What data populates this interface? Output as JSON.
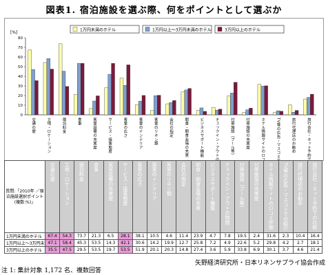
{
  "title": "図表1. 宿泊施設を選ぶ際、何をポイントとして選ぶか",
  "chart_data": {
    "type": "bar",
    "unit_label": "[%]",
    "ylim": [
      0,
      80
    ],
    "yticks": [
      0,
      10,
      20,
      30,
      40,
      50,
      60,
      70,
      80
    ],
    "legend_position": "top",
    "categories": [
      "交通の便",
      "立地・ロケーション",
      "宿泊料金",
      "食事",
      "客室設備の充実度",
      "サービス・接客態度",
      "客室の広さ",
      "客室のインテリア",
      "客室のリネン類",
      "会社の指定",
      "朝食・朝食会場の充実",
      "ビジネスサポート機能",
      "チェックイン・アウトの時間",
      "付帯施設（プール等）",
      "付帯施設の充実度",
      "ホテル情報サイトのロコミ評価",
      "TV等の広告・マスコミでの紹介",
      "旅行代理店のお勧め",
      "旅行会社・ネット予約での比較"
    ],
    "series": [
      {
        "name": "1万円未満のホテル",
        "color": "#ffffaa",
        "values": [
          67.4,
          54.3,
          73.7,
          21.3,
          6.5,
          28.1,
          38.1,
          10.5,
          4.6,
          11.4,
          23.9,
          4.7,
          7.8,
          19.5,
          2.4,
          31.6,
          2.3,
          10.4,
          16.4
        ]
      },
      {
        "name": "1万円以上〜3万円未満のホテル",
        "color": "#7f9fcf",
        "values": [
          47.1,
          58.4,
          45.3,
          53.5,
          14.3,
          42.1,
          30.6,
          14.2,
          19.9,
          12.7,
          25.8,
          7.2,
          4.9,
          22.6,
          5.2,
          29.8,
          4.2,
          2.7,
          18.1
        ]
      },
      {
        "name": "3万円以上のホテル",
        "color": "#7a1a3a",
        "values": [
          35.5,
          47.5,
          29.5,
          53.5,
          19.7,
          53.5,
          51.9,
          20.1,
          20.3,
          14.8,
          27.4,
          3.6,
          5.9,
          33.8,
          6.9,
          30.1,
          3.7,
          4.6,
          21.4
        ]
      }
    ]
  },
  "table": {
    "corner": "質問:「2010年 ／宿泊施設選択ポイント (複数:%)」",
    "highlight_cols": [
      0,
      1,
      5
    ]
  },
  "credit": "矢野経済研究所・日本リネンサプライ協会作成",
  "note": "注 1: 集計対象 1,172 名、複数回答"
}
